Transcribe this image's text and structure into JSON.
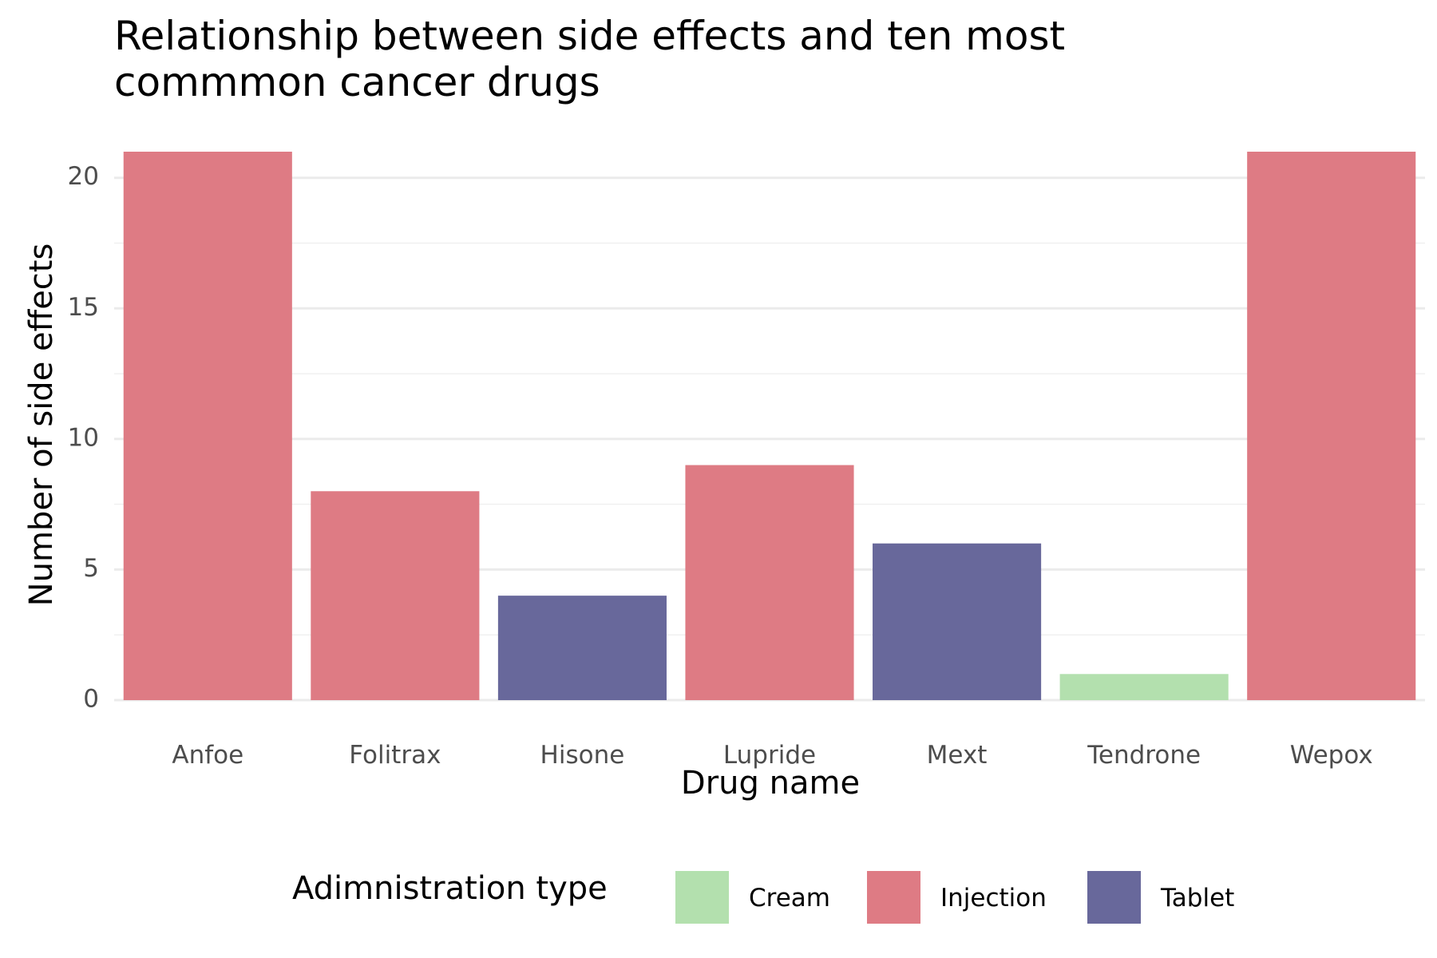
{
  "chart_data": {
    "type": "bar",
    "title_lines": [
      "Relationship between side effects and ten most",
      "commmon cancer drugs"
    ],
    "xlabel": "Drug name",
    "ylabel": "Number of side effects",
    "categories": [
      "Anfoe",
      "Folitrax",
      "Hisone",
      "Lupride",
      "Mext",
      "Tendrone",
      "Wepox"
    ],
    "values": [
      21,
      8,
      4,
      9,
      6,
      1,
      21
    ],
    "fill_group": [
      "Injection",
      "Injection",
      "Tablet",
      "Injection",
      "Tablet",
      "Cream",
      "Injection"
    ],
    "ylim": [
      0,
      21
    ],
    "yticks": [
      0,
      5,
      10,
      15,
      20
    ],
    "grid": true,
    "legend": {
      "title": "Adimnistration type",
      "position": "bottom",
      "entries": [
        {
          "label": "Cream",
          "color": "#b3e0ae"
        },
        {
          "label": "Injection",
          "color": "#de7b84"
        },
        {
          "label": "Tablet",
          "color": "#68689b"
        }
      ]
    }
  }
}
